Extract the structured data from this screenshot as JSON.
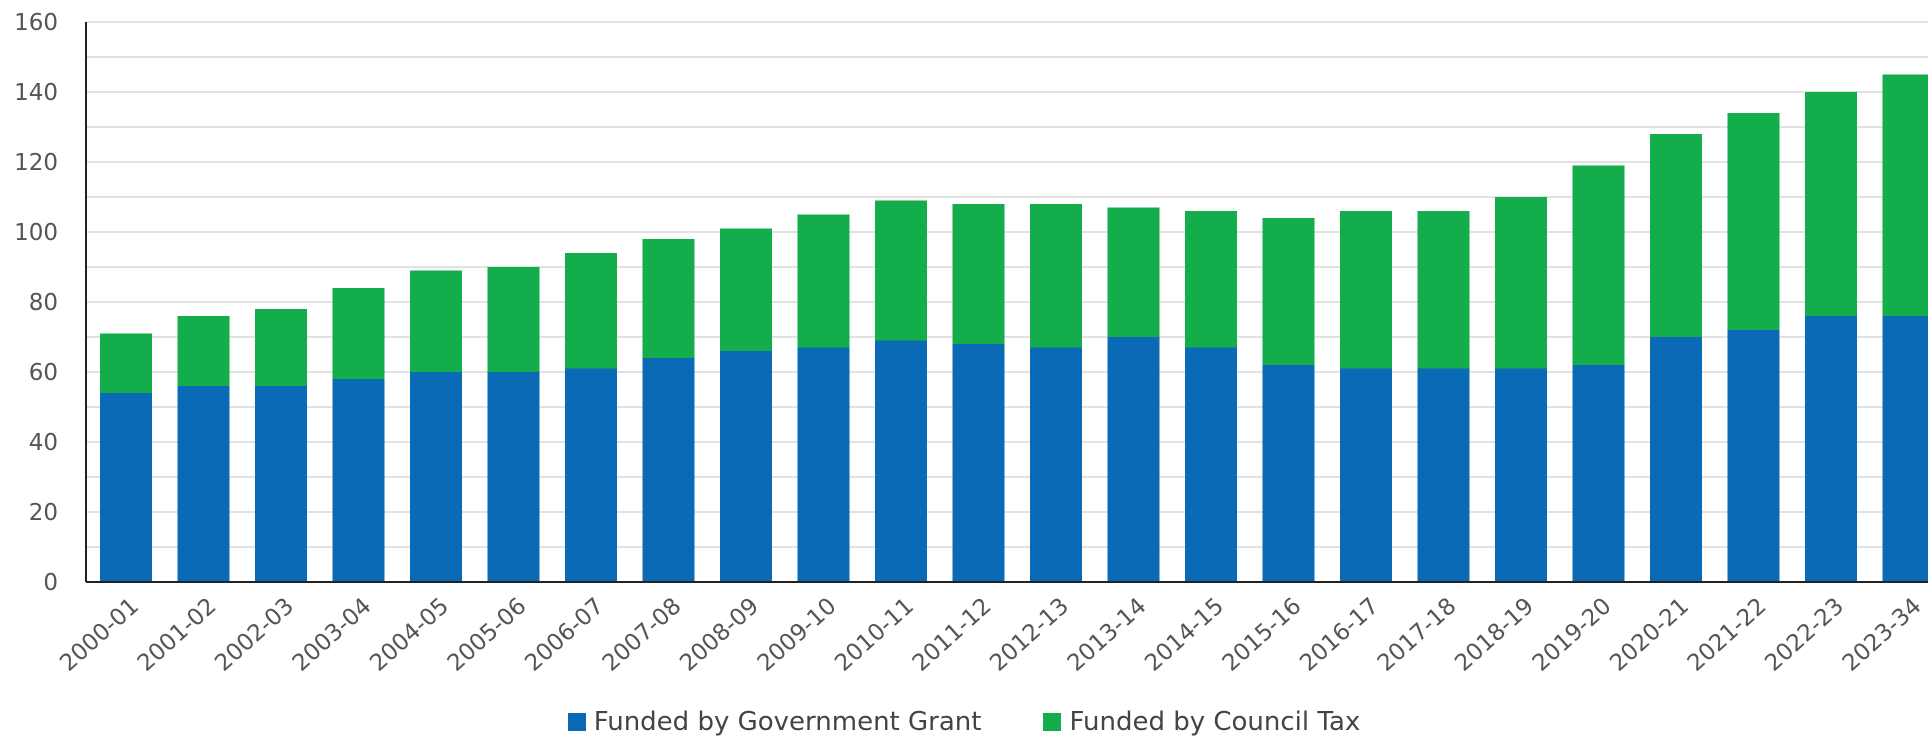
{
  "chart_data": {
    "type": "bar",
    "stacked": true,
    "title": "",
    "xlabel": "",
    "ylabel": "",
    "ylim": [
      0,
      160
    ],
    "yticks": [
      0,
      20,
      40,
      60,
      80,
      100,
      120,
      140,
      160
    ],
    "grid": true,
    "legend_position": "bottom",
    "categories": [
      "2000-01",
      "2001-02",
      "2002-03",
      "2003-04",
      "2004-05",
      "2005-06",
      "2006-07",
      "2007-08",
      "2008-09",
      "2009-10",
      "2010-11",
      "2011-12",
      "2012-13",
      "2013-14",
      "2014-15",
      "2015-16",
      "2016-17",
      "2017-18",
      "2018-19",
      "2019-20",
      "2020-21",
      "2021-22",
      "2022-23",
      "2023-34"
    ],
    "series": [
      {
        "name": "Funded by Government Grant",
        "color": "#0a6ab5",
        "values": [
          54,
          56,
          56,
          58,
          60,
          60,
          61,
          64,
          66,
          67,
          69,
          68,
          67,
          70,
          67,
          62,
          61,
          61,
          61,
          62,
          70,
          72,
          76,
          76
        ]
      },
      {
        "name": "Funded by Council Tax",
        "color": "#14ad4b",
        "values": [
          17,
          20,
          22,
          26,
          29,
          30,
          33,
          34,
          35,
          38,
          40,
          40,
          41,
          37,
          39,
          42,
          45,
          45,
          49,
          57,
          58,
          62,
          64,
          69
        ]
      }
    ]
  }
}
